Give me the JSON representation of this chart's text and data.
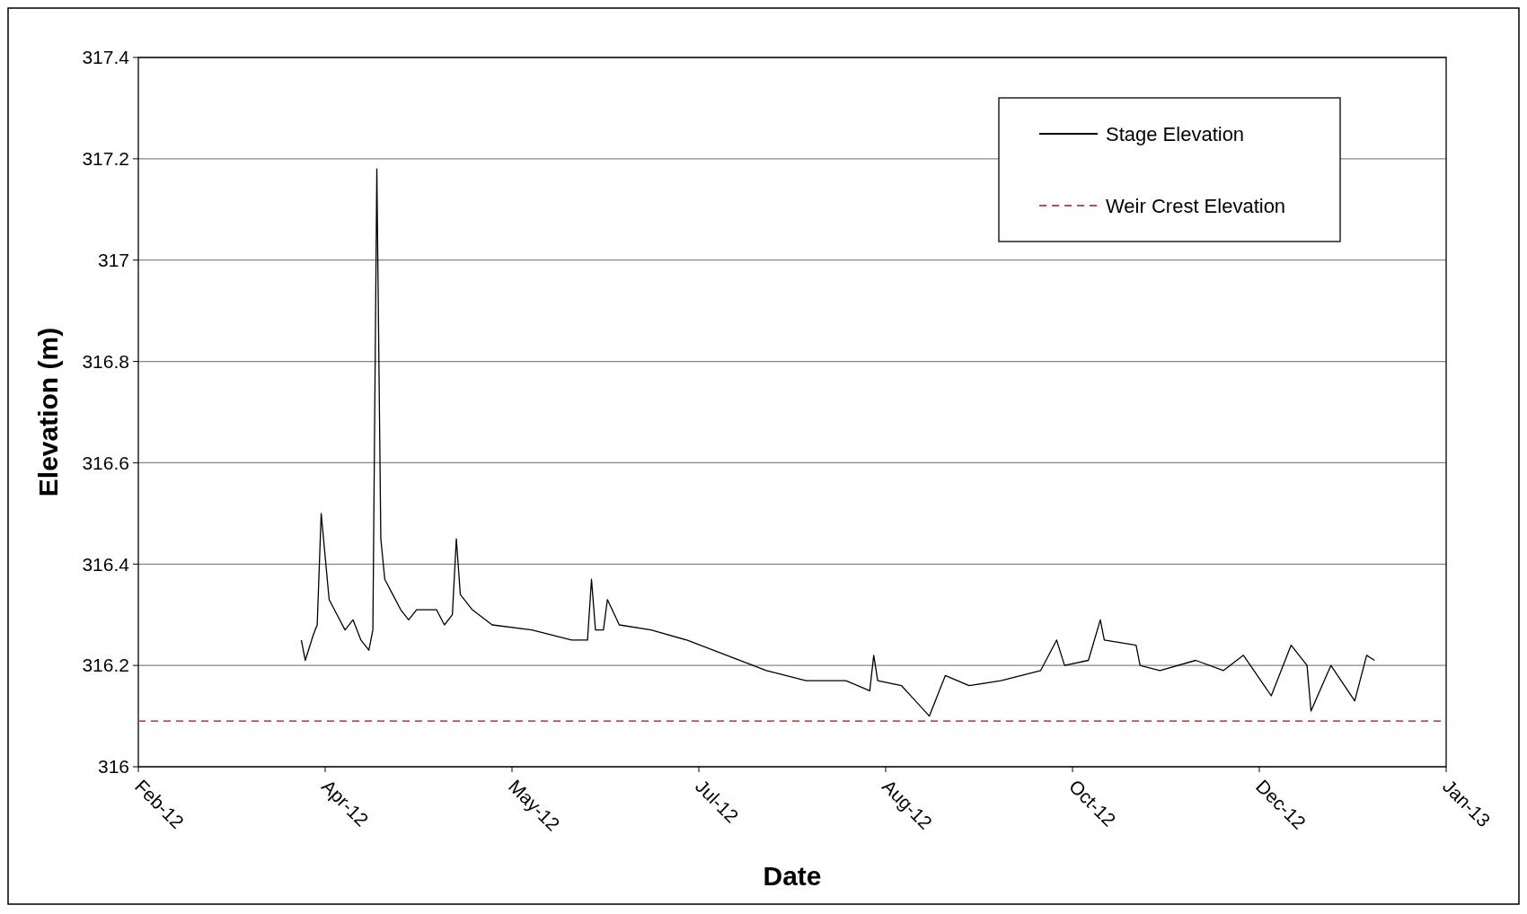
{
  "chart_data": {
    "type": "line",
    "xlabel": "Date",
    "ylabel": "Elevation (m)",
    "x": [
      "2012-04-05",
      "2012-04-06",
      "2012-04-08",
      "2012-04-09",
      "2012-04-10",
      "2012-04-12",
      "2012-04-14",
      "2012-04-16",
      "2012-04-18",
      "2012-04-20",
      "2012-04-22",
      "2012-04-23",
      "2012-04-24",
      "2012-04-25",
      "2012-04-26",
      "2012-04-28",
      "2012-04-30",
      "2012-05-02",
      "2012-05-04",
      "2012-05-09",
      "2012-05-11",
      "2012-05-13",
      "2012-05-14",
      "2012-05-15",
      "2012-05-18",
      "2012-05-23",
      "2012-06-02",
      "2012-06-12",
      "2012-06-16",
      "2012-06-17",
      "2012-06-18",
      "2012-06-20",
      "2012-06-21",
      "2012-06-24",
      "2012-07-02",
      "2012-07-11",
      "2012-07-21",
      "2012-07-31",
      "2012-08-10",
      "2012-08-20",
      "2012-08-26",
      "2012-08-27",
      "2012-08-28",
      "2012-09-03",
      "2012-09-10",
      "2012-09-14",
      "2012-09-20",
      "2012-09-28",
      "2012-10-08",
      "2012-10-12",
      "2012-10-14",
      "2012-10-20",
      "2012-10-23",
      "2012-10-24",
      "2012-11-01",
      "2012-11-02",
      "2012-11-07",
      "2012-11-16",
      "2012-11-23",
      "2012-11-28",
      "2012-12-05",
      "2012-12-10",
      "2012-12-14",
      "2012-12-15",
      "2012-12-20",
      "2012-12-26",
      "2012-12-29",
      "2012-12-31"
    ],
    "series": [
      {
        "name": "Stage Elevation",
        "color": "#000000",
        "values": [
          316.25,
          316.21,
          316.26,
          316.28,
          316.5,
          316.33,
          316.3,
          316.27,
          316.29,
          316.25,
          316.23,
          316.27,
          317.18,
          316.45,
          316.37,
          316.34,
          316.31,
          316.29,
          316.31,
          316.31,
          316.28,
          316.3,
          316.45,
          316.34,
          316.31,
          316.28,
          316.27,
          316.25,
          316.25,
          316.37,
          316.27,
          316.27,
          316.33,
          316.28,
          316.27,
          316.25,
          316.22,
          316.19,
          316.17,
          316.17,
          316.15,
          316.22,
          316.17,
          316.16,
          316.1,
          316.18,
          316.16,
          316.17,
          316.19,
          316.25,
          316.2,
          316.21,
          316.29,
          316.25,
          316.24,
          316.2,
          316.19,
          316.21,
          316.19,
          316.22,
          316.14,
          316.24,
          316.2,
          316.11,
          316.2,
          316.13,
          316.22,
          316.21
        ]
      }
    ],
    "ref_lines": [
      {
        "axis": "y",
        "value": 316.09,
        "label": "Weir Crest Elevation",
        "color": "#c0504d",
        "line_style": "dashed"
      }
    ],
    "xlim": [
      "2012-02-24",
      "2013-01-18"
    ],
    "xticks": [
      {
        "value": "2012-02-24",
        "label": "Feb-12"
      },
      {
        "value": "2012-04-11",
        "label": "Apr-12"
      },
      {
        "value": "2012-05-28",
        "label": "May-12"
      },
      {
        "value": "2012-07-14",
        "label": "Jul-12"
      },
      {
        "value": "2012-08-30",
        "label": "Aug-12"
      },
      {
        "value": "2012-10-16",
        "label": "Oct-12"
      },
      {
        "value": "2012-12-02",
        "label": "Dec-12"
      },
      {
        "value": "2013-01-18",
        "label": "Jan-13"
      }
    ],
    "ylim": [
      316,
      317.4
    ],
    "yticks": [
      316,
      316.2,
      316.4,
      316.6,
      316.8,
      317,
      317.2,
      317.4
    ],
    "grid": "y",
    "legend": "top right",
    "marker": "none",
    "line_style": "solid"
  }
}
